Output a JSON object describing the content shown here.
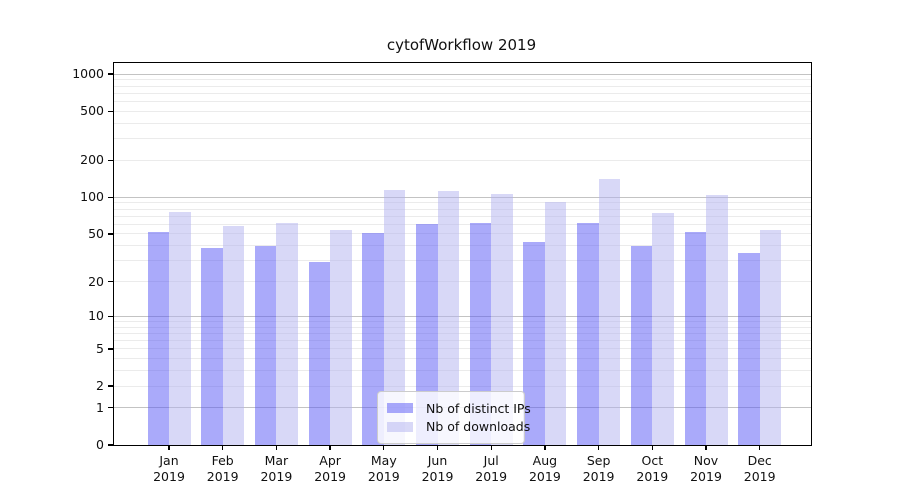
{
  "chart_data": {
    "type": "bar",
    "title": "cytofWorkflow 2019",
    "x_year": "2019",
    "categories": [
      "Jan",
      "Feb",
      "Mar",
      "Apr",
      "May",
      "Jun",
      "Jul",
      "Aug",
      "Sep",
      "Oct",
      "Nov",
      "Dec"
    ],
    "series": [
      {
        "name": "Nb of distinct IPs",
        "color": "#aaaafa",
        "fill": "rgba(85,85,245,0.5)",
        "values": [
          52,
          38,
          40,
          29,
          51,
          60,
          62,
          43,
          62,
          40,
          52,
          35
        ]
      },
      {
        "name": "Nb of downloads",
        "color": "#d8d8f7",
        "fill": "rgba(177,177,239,0.5)",
        "values": [
          76,
          58,
          62,
          54,
          115,
          113,
          106,
          92,
          140,
          74,
          105,
          54
        ]
      }
    ],
    "y_scale": "log1p",
    "ylim": [
      0,
      1200
    ],
    "y_ticks": [
      0,
      1,
      2,
      5,
      10,
      20,
      50,
      100,
      200,
      500,
      1000
    ],
    "y_major_gridlines": [
      1,
      10,
      100,
      1000
    ],
    "y_minor_gridlines": [
      2,
      3,
      4,
      5,
      6,
      7,
      8,
      9,
      20,
      30,
      40,
      50,
      60,
      70,
      80,
      90,
      200,
      300,
      400,
      500,
      600,
      700,
      800,
      900
    ],
    "grid": true,
    "legend_position": "lower center",
    "xlabel": "",
    "ylabel": ""
  }
}
